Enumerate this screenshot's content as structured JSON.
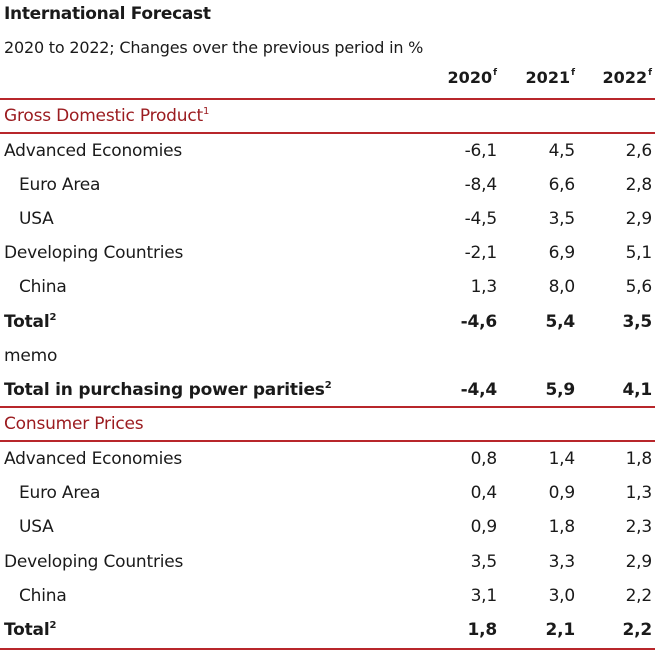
{
  "title": "International Forecast",
  "subtitle": "2020 to 2022; Changes over the previous period in %",
  "columns": [
    {
      "year": "2020",
      "mark": "f"
    },
    {
      "year": "2021",
      "mark": "f"
    },
    {
      "year": "2022",
      "mark": "f"
    }
  ],
  "gdp": {
    "heading": "Gross Domestic Product",
    "heading_note": "1",
    "rows": [
      {
        "label": "Advanced Economies",
        "v": [
          "-6,1",
          "4,5",
          "2,6"
        ]
      },
      {
        "label": "Euro Area",
        "v": [
          "-8,4",
          "6,6",
          "2,8"
        ]
      },
      {
        "label": "USA",
        "v": [
          "-4,5",
          "3,5",
          "2,9"
        ]
      },
      {
        "label": "Developing Countries",
        "v": [
          "-2,1",
          "6,9",
          "5,1"
        ]
      },
      {
        "label": "China",
        "v": [
          "1,3",
          "8,0",
          "5,6"
        ]
      },
      {
        "label": "Total",
        "note": "2",
        "v": [
          "-4,6",
          "5,4",
          "3,5"
        ]
      },
      {
        "label": "memo"
      },
      {
        "label": "Total in purchasing power parities",
        "note": "2",
        "v": [
          "-4,4",
          "5,9",
          "4,1"
        ]
      }
    ]
  },
  "cpi": {
    "heading": "Consumer Prices",
    "rows": [
      {
        "label": "Advanced Economies",
        "v": [
          "0,8",
          "1,4",
          "1,8"
        ]
      },
      {
        "label": "Euro Area",
        "v": [
          "0,4",
          "0,9",
          "1,3"
        ]
      },
      {
        "label": "USA",
        "v": [
          "0,9",
          "1,8",
          "2,3"
        ]
      },
      {
        "label": "Developing Countries",
        "v": [
          "3,5",
          "3,3",
          "2,9"
        ]
      },
      {
        "label": "China",
        "v": [
          "3,1",
          "3,0",
          "2,2"
        ]
      },
      {
        "label": "Total",
        "note": "2",
        "v": [
          "1,8",
          "2,1",
          "2,2"
        ]
      }
    ]
  },
  "colors": {
    "accent": "#9b1c20",
    "rule": "#b8262b"
  }
}
